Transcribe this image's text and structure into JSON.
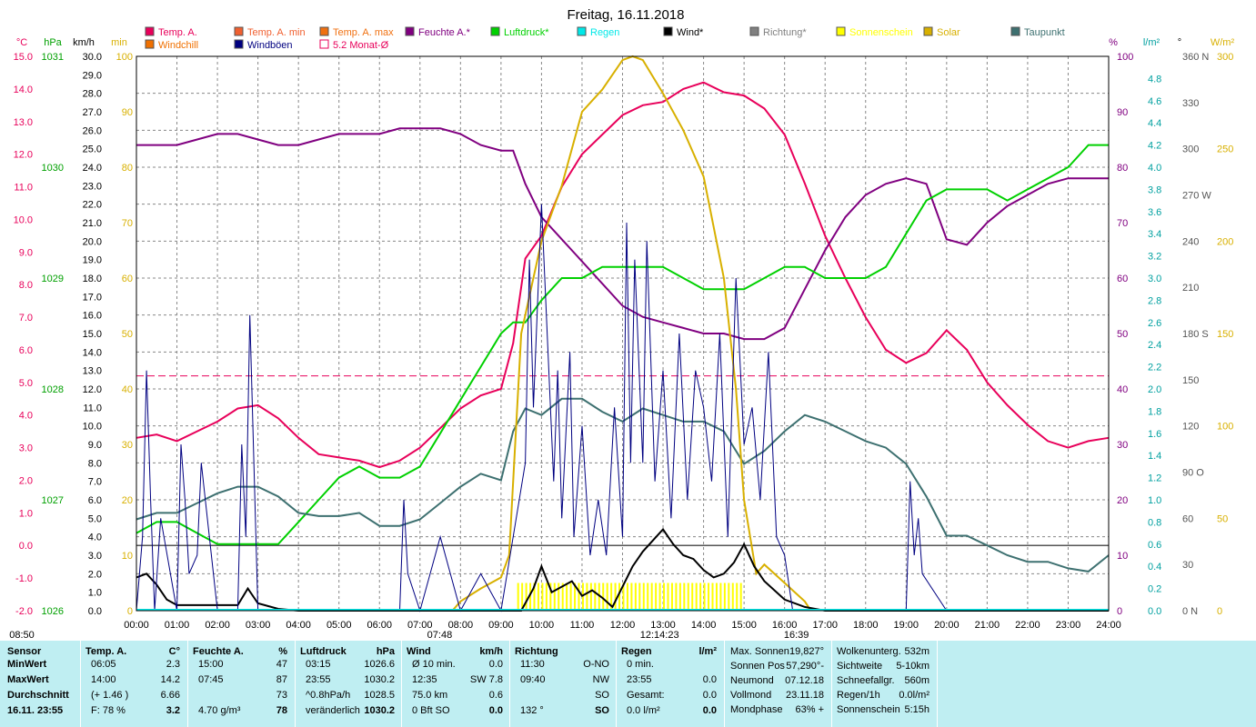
{
  "title": "Freitag, 16.11.2018",
  "legend": [
    {
      "label": "Temp. A.",
      "color": "#e8005a"
    },
    {
      "label": "Temp. A. min",
      "color": "#f06030"
    },
    {
      "label": "Temp. A. max",
      "color": "#f07010"
    },
    {
      "label": "Feuchte A.*",
      "color": "#800080"
    },
    {
      "label": "Luftdruck*",
      "color": "#00d000"
    },
    {
      "label": "Regen",
      "color": "#00e8e8"
    },
    {
      "label": "Wind*",
      "color": "#000000"
    },
    {
      "label": "Richtung*",
      "color": "#808080"
    },
    {
      "label": "Sonnenschein",
      "color": "#ffff00"
    },
    {
      "label": "Solar",
      "color": "#d8b000"
    },
    {
      "label": "Taupunkt",
      "color": "#3d7070"
    },
    {
      "label": "Windchill",
      "color": "#f07000"
    },
    {
      "label": "Windböen",
      "color": "#000080"
    },
    {
      "label": "5.2 Monat-Ø",
      "color": "#e8005a"
    }
  ],
  "axis_units": [
    "°C",
    "hPa",
    "km/h",
    "min",
    "%",
    "l/m²",
    "°",
    "W/m²"
  ],
  "chart_data": {
    "type": "line",
    "title": "Freitag, 16.11.2018",
    "x_ticks": [
      "00:00",
      "01:00",
      "02:00",
      "03:00",
      "04:00",
      "05:00",
      "06:00",
      "07:00",
      "08:00",
      "09:00",
      "10:00",
      "11:00",
      "12:00",
      "13:00",
      "14:00",
      "15:00",
      "16:00",
      "17:00",
      "18:00",
      "19:00",
      "20:00",
      "21:00",
      "22:00",
      "23:00",
      "24:00"
    ],
    "xlim": [
      0,
      24
    ],
    "temp_axis": {
      "label": "°C",
      "ylim": [
        -2,
        15
      ],
      "ticks": [
        "15.0",
        "14.0",
        "13.0",
        "12.0",
        "11.0",
        "10.0",
        "9.0",
        "8.0",
        "7.0",
        "6.0",
        "5.0",
        "4.0",
        "3.0",
        "2.0",
        "1.0",
        "0.0",
        "-1.0",
        "-2.0"
      ]
    },
    "pressure_axis": {
      "label": "hPa",
      "ylim": [
        1026,
        1031
      ],
      "ticks": [
        "1031",
        "1030",
        "1029",
        "1028",
        "1027",
        "1026"
      ]
    },
    "wind_axis": {
      "label": "km/h",
      "ylim": [
        0,
        30
      ],
      "ticks": [
        "30.0",
        "29.0",
        "28.0",
        "27.0",
        "26.0",
        "25.0",
        "24.0",
        "23.0",
        "22.0",
        "21.0",
        "20.0",
        "19.0",
        "18.0",
        "17.0",
        "16.0",
        "15.0",
        "14.0",
        "13.0",
        "12.0",
        "11.0",
        "10.0",
        "9.0",
        "8.0",
        "7.0",
        "6.0",
        "5.0",
        "4.0",
        "3.0",
        "2.0",
        "1.0",
        "0.0"
      ]
    },
    "sun_axis": {
      "label": "min",
      "ylim": [
        0,
        100
      ],
      "ticks": [
        "100",
        "90",
        "80",
        "70",
        "60",
        "50",
        "40",
        "30",
        "20",
        "10",
        "0"
      ]
    },
    "humidity_axis": {
      "label": "%",
      "ylim": [
        0,
        100
      ],
      "ticks": [
        "100",
        "90",
        "80",
        "70",
        "60",
        "50",
        "40",
        "30",
        "20",
        "10",
        "0"
      ]
    },
    "rain_axis": {
      "label": "l/m²",
      "ylim": [
        0,
        5
      ],
      "ticks": [
        "4.8",
        "4.6",
        "4.4",
        "4.2",
        "4.0",
        "3.8",
        "3.6",
        "3.4",
        "3.2",
        "3.0",
        "2.8",
        "2.6",
        "2.4",
        "2.2",
        "2.0",
        "1.8",
        "1.6",
        "1.4",
        "1.2",
        "1.0",
        "0.8",
        "0.6",
        "0.4",
        "0.2",
        "0.0"
      ]
    },
    "direction_axis": {
      "label": "°",
      "ylim": [
        0,
        360
      ],
      "ticks": [
        "360 N",
        "330",
        "300",
        "270 W",
        "240",
        "210",
        "180 S",
        "150",
        "120",
        "90 O",
        "60",
        "30",
        "0 N"
      ]
    },
    "solar_axis": {
      "label": "W/m²",
      "ylim": [
        0,
        300
      ],
      "ticks": [
        "300",
        "250",
        "200",
        "150",
        "100",
        "50",
        "0"
      ]
    },
    "sunrise": "07:48",
    "sunset": "16:39",
    "solar_noon": "12:14:23",
    "start_marker": "08:50",
    "monthly_avg_temp": 5.2,
    "series": [
      {
        "name": "Temp. A.",
        "axis": "temp",
        "color": "#e8005a",
        "x": [
          0,
          0.5,
          1,
          1.5,
          2,
          2.5,
          3,
          3.5,
          4,
          4.5,
          5,
          5.5,
          6,
          6.5,
          7,
          7.5,
          8,
          8.5,
          9,
          9.3,
          9.6,
          10,
          10.5,
          11,
          11.5,
          12,
          12.5,
          13,
          13.5,
          14,
          14.5,
          15,
          15.5,
          16,
          16.5,
          17,
          17.5,
          18,
          18.5,
          19,
          19.5,
          20,
          20.5,
          21,
          21.5,
          22,
          22.5,
          23,
          23.5,
          24
        ],
        "values": [
          3.3,
          3.4,
          3.2,
          3.5,
          3.8,
          4.2,
          4.3,
          3.9,
          3.3,
          2.8,
          2.7,
          2.6,
          2.4,
          2.6,
          3.0,
          3.6,
          4.2,
          4.6,
          4.8,
          6.2,
          8.8,
          9.5,
          11.0,
          12.0,
          12.6,
          13.2,
          13.5,
          13.6,
          14.0,
          14.2,
          13.9,
          13.8,
          13.4,
          12.6,
          11.1,
          9.5,
          8.2,
          7.0,
          6.0,
          5.6,
          5.9,
          6.6,
          6.0,
          5.0,
          4.3,
          3.7,
          3.2,
          3.0,
          3.2,
          3.3
        ]
      },
      {
        "name": "Feuchte A.*",
        "axis": "humidity",
        "color": "#800080",
        "x": [
          0,
          0.5,
          1,
          1.5,
          2,
          2.5,
          3,
          3.5,
          4,
          4.5,
          5,
          5.5,
          6,
          6.5,
          7,
          7.5,
          8,
          8.5,
          9,
          9.3,
          9.6,
          10,
          10.5,
          11,
          11.5,
          12,
          12.5,
          13,
          13.5,
          14,
          14.5,
          15,
          15.5,
          16,
          16.5,
          17,
          17.5,
          18,
          18.5,
          19,
          19.5,
          20,
          20.5,
          21,
          21.5,
          22,
          22.5,
          23,
          23.5,
          24
        ],
        "values": [
          84,
          84,
          84,
          85,
          86,
          86,
          85,
          84,
          84,
          85,
          86,
          86,
          86,
          87,
          87,
          87,
          86,
          84,
          83,
          83,
          77,
          71,
          67,
          63,
          59,
          55,
          53,
          52,
          51,
          50,
          50,
          49,
          49,
          51,
          58,
          65,
          71,
          75,
          77,
          78,
          77,
          67,
          66,
          70,
          73,
          75,
          77,
          78,
          78,
          78
        ]
      },
      {
        "name": "Luftdruck*",
        "axis": "pressure",
        "color": "#00d000",
        "x": [
          0,
          0.5,
          1,
          1.5,
          2,
          2.5,
          3,
          3.5,
          4,
          4.5,
          5,
          5.5,
          6,
          6.5,
          7,
          7.5,
          8,
          8.5,
          9,
          9.3,
          9.6,
          10,
          10.5,
          11,
          11.5,
          12,
          12.5,
          13,
          13.5,
          14,
          14.5,
          15,
          15.5,
          16,
          16.5,
          17,
          17.5,
          18,
          18.5,
          19,
          19.5,
          20,
          20.5,
          21,
          21.5,
          22,
          22.5,
          23,
          23.5,
          24
        ],
        "values": [
          1026.7,
          1026.8,
          1026.8,
          1026.7,
          1026.6,
          1026.6,
          1026.6,
          1026.6,
          1026.8,
          1027.0,
          1027.2,
          1027.3,
          1027.2,
          1027.2,
          1027.3,
          1027.6,
          1027.9,
          1028.2,
          1028.5,
          1028.6,
          1028.6,
          1028.8,
          1029.0,
          1029.0,
          1029.1,
          1029.1,
          1029.1,
          1029.1,
          1029.0,
          1028.9,
          1028.9,
          1028.9,
          1029.0,
          1029.1,
          1029.1,
          1029.0,
          1029.0,
          1029.0,
          1029.1,
          1029.4,
          1029.7,
          1029.8,
          1029.8,
          1029.8,
          1029.7,
          1029.8,
          1029.9,
          1030.0,
          1030.2,
          1030.2
        ]
      },
      {
        "name": "Taupunkt",
        "axis": "temp",
        "color": "#3d7070",
        "x": [
          0,
          0.5,
          1,
          1.5,
          2,
          2.5,
          3,
          3.5,
          4,
          4.5,
          5,
          5.5,
          6,
          6.5,
          7,
          7.5,
          8,
          8.5,
          9,
          9.3,
          9.6,
          10,
          10.5,
          11,
          11.5,
          12,
          12.5,
          13,
          13.5,
          14,
          14.5,
          15,
          15.5,
          16,
          16.5,
          17,
          17.5,
          18,
          18.5,
          19,
          19.5,
          20,
          20.5,
          21,
          21.5,
          22,
          22.5,
          23,
          23.5,
          24
        ],
        "values": [
          0.8,
          1.0,
          1.0,
          1.3,
          1.6,
          1.8,
          1.8,
          1.5,
          1.0,
          0.9,
          0.9,
          1.0,
          0.6,
          0.6,
          0.8,
          1.3,
          1.8,
          2.2,
          2.0,
          3.5,
          4.2,
          4.0,
          4.5,
          4.5,
          4.1,
          3.8,
          4.2,
          4.0,
          3.8,
          3.8,
          3.5,
          2.5,
          2.9,
          3.5,
          4.0,
          3.8,
          3.5,
          3.2,
          3.0,
          2.5,
          1.5,
          0.3,
          0.3,
          0.0,
          -0.3,
          -0.5,
          -0.5,
          -0.7,
          -0.8,
          -0.3
        ]
      },
      {
        "name": "Solar",
        "axis": "solar",
        "color": "#d8b000",
        "x": [
          7.8,
          8,
          8.5,
          9,
          9.2,
          9.5,
          10,
          10.5,
          11,
          11.5,
          12,
          12.25,
          12.5,
          13,
          13.5,
          14,
          14.5,
          14.8,
          15,
          15.3,
          15.5,
          16,
          16.5,
          16.65
        ],
        "values": [
          0,
          5,
          12,
          18,
          30,
          150,
          200,
          230,
          270,
          282,
          298,
          300,
          298,
          280,
          260,
          235,
          180,
          120,
          60,
          20,
          25,
          15,
          5,
          0
        ]
      },
      {
        "name": "Wind*",
        "axis": "wind",
        "color": "#000000",
        "x": [
          0,
          0.25,
          0.5,
          0.75,
          1,
          1.5,
          2,
          2.5,
          2.75,
          3,
          3.5,
          4,
          7,
          8,
          9,
          9.5,
          9.8,
          10,
          10.25,
          10.5,
          10.75,
          11,
          11.25,
          11.5,
          11.75,
          12,
          12.25,
          12.5,
          12.75,
          13,
          13.25,
          13.5,
          13.75,
          14,
          14.25,
          14.5,
          14.75,
          15,
          15.25,
          15.5,
          16,
          16.5,
          17,
          19.5,
          20,
          24
        ],
        "values": [
          1.8,
          2.0,
          1.4,
          0.6,
          0.3,
          0.3,
          0.3,
          0.3,
          1.2,
          0.4,
          0.1,
          0,
          0,
          0,
          0,
          0,
          1.2,
          2.4,
          1.0,
          1.3,
          1.6,
          0.8,
          1.1,
          0.7,
          0.2,
          1.3,
          2.4,
          3.2,
          3.8,
          4.4,
          3.6,
          3.0,
          2.8,
          2.2,
          1.8,
          2.0,
          2.6,
          3.6,
          2.4,
          1.6,
          0.6,
          0.2,
          0,
          0,
          0,
          0
        ]
      },
      {
        "name": "Windböen",
        "axis": "wind",
        "color": "#000080",
        "x": [
          0,
          0.15,
          0.25,
          0.35,
          0.45,
          0.6,
          1,
          1.1,
          1.2,
          1.3,
          1.5,
          1.6,
          2,
          2.5,
          2.6,
          2.7,
          2.8,
          3,
          4,
          6.5,
          6.6,
          6.7,
          7,
          7.5,
          8,
          8.5,
          9,
          9.6,
          9.7,
          9.8,
          10,
          10.3,
          10.4,
          10.5,
          10.7,
          10.8,
          11,
          11.2,
          11.4,
          11.6,
          11.8,
          12,
          12.1,
          12.2,
          12.3,
          12.5,
          12.6,
          12.8,
          13,
          13.2,
          13.4,
          13.6,
          13.8,
          14,
          14.2,
          14.4,
          14.6,
          14.8,
          15,
          15.2,
          15.4,
          15.6,
          15.8,
          16,
          16.2,
          19,
          19.1,
          19.2,
          19.3,
          19.4,
          20,
          24
        ],
        "values": [
          0,
          4,
          13,
          6,
          0,
          5,
          0,
          9,
          6,
          2,
          3,
          8,
          0,
          0,
          9,
          4,
          16,
          0,
          0,
          0,
          6,
          2,
          0,
          4,
          0,
          2,
          0,
          8,
          19,
          11,
          22,
          7,
          13,
          5,
          14,
          4,
          10,
          3,
          6,
          3,
          11,
          4,
          21,
          8,
          19,
          8,
          20,
          7,
          13,
          5,
          15,
          6,
          13,
          11,
          7,
          15,
          4,
          18,
          9,
          11,
          6,
          14,
          4,
          3,
          0,
          0,
          7,
          3,
          5,
          2,
          0,
          0
        ]
      }
    ]
  },
  "panel": {
    "sensor": {
      "header": "Sensor",
      "rows": [
        "MinWert",
        "MaxWert",
        "Durchschnitt",
        "16.11. 23:55"
      ]
    },
    "temp": {
      "header": "Temp. A.",
      "unit": "°C",
      "rows": [
        [
          "06:05",
          "2.3"
        ],
        [
          "14:00",
          "14.2"
        ],
        [
          "(+ 1.46 )",
          "6.66"
        ],
        [
          "F: 78 %",
          "3.2"
        ]
      ]
    },
    "feuchte": {
      "header": "Feuchte A.",
      "unit": "%",
      "rows": [
        [
          "15:00",
          "47"
        ],
        [
          "07:45",
          "87"
        ],
        [
          "",
          "73"
        ],
        [
          "4.70 g/m³",
          "78"
        ]
      ]
    },
    "luftdruck": {
      "header": "Luftdruck",
      "unit": "hPa",
      "rows": [
        [
          "03:15",
          "1026.6"
        ],
        [
          "23:55",
          "1030.2"
        ],
        [
          "^0.8hPa/h",
          "1028.5"
        ],
        [
          "veränderlich",
          "1030.2"
        ]
      ]
    },
    "wind": {
      "header": "Wind",
      "unit": "km/h",
      "rows": [
        [
          "Ø 10 min.",
          "0.0"
        ],
        [
          "12:35",
          "SW 7.8"
        ],
        [
          "75.0 km",
          "0.6"
        ],
        [
          "0 Bft SO",
          "0.0"
        ]
      ]
    },
    "richtung": {
      "header": "Richtung",
      "rows": [
        [
          "11:30",
          "O-NO"
        ],
        [
          "09:40",
          "NW"
        ],
        [
          "",
          "SO"
        ],
        [
          "132 °",
          "SO"
        ]
      ]
    },
    "regen": {
      "header": "Regen",
      "unit": "l/m²",
      "rows": [
        [
          "0 min.",
          ""
        ],
        [
          "23:55",
          "0.0"
        ],
        [
          "Gesamt:",
          "0.0"
        ],
        [
          "0.0 l/m²",
          "0.0"
        ]
      ]
    },
    "astro": {
      "rows": [
        [
          "Max. Sonnen",
          "19,827°"
        ],
        [
          "Sonnen Pos",
          "-57,290°"
        ],
        [
          "Neumond",
          "07.12.18"
        ],
        [
          "Vollmond",
          "23.11.18"
        ],
        [
          "Mondphase",
          "+ 63%"
        ]
      ]
    },
    "extra": {
      "rows": [
        [
          "Wolkenunterg.",
          "532m"
        ],
        [
          "Sichtweite",
          "5-10km"
        ],
        [
          "Schneefallgr.",
          "560m"
        ],
        [
          "Regen/1h",
          "0.0l/m²"
        ],
        [
          "Sonnenschein",
          "5:15h"
        ]
      ]
    }
  }
}
